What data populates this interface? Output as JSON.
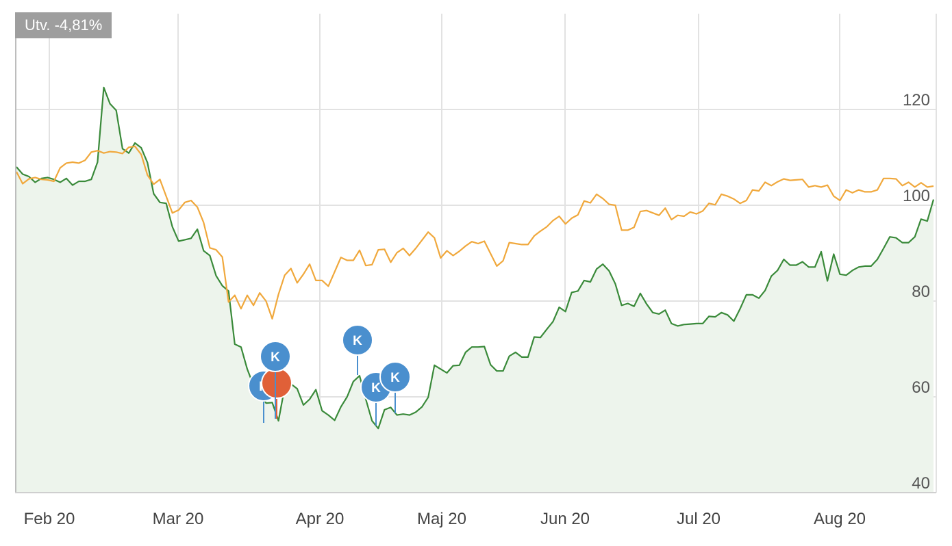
{
  "header": {
    "change_label": "Utv. -4,81%"
  },
  "colors": {
    "stock_line": "#3a8a3a",
    "stock_fill": "#edf4ec",
    "index_line": "#f0a83c",
    "grid": "#e2e2e2",
    "marker_blue": "#4a8fce",
    "marker_orange": "#e06038"
  },
  "chart_data": {
    "type": "line",
    "ylim": [
      40,
      140
    ],
    "yticks": [
      "40",
      "60",
      "80",
      "100",
      "120"
    ],
    "xticks": [
      "Feb 20",
      "Mar 20",
      "Apr 20",
      "Maj 20",
      "Jun 20",
      "Jul 20",
      "Aug 20"
    ],
    "grid": true,
    "series": [
      {
        "key": "stock",
        "values": [
          108,
          106.5,
          106,
          104.8,
          105.6,
          105.8,
          105.4,
          104.8,
          105.6,
          104.2,
          105,
          105,
          105.4,
          109,
          124.6,
          121.2,
          119.8,
          111.8,
          110.9,
          113,
          112,
          108.9,
          102.4,
          100.6,
          100.4,
          95.5,
          92.5,
          92.8,
          93.1,
          95,
          90.5,
          89.5,
          85.3,
          83.2,
          82.1,
          71,
          70.4,
          65.8,
          62.4,
          61,
          58.7,
          58.8,
          55,
          62,
          62.7,
          61.7,
          58.3,
          59.5,
          61.5,
          57.1,
          56.2,
          55.1,
          57.9,
          60,
          63.2,
          64.4,
          59.5,
          55,
          53.4,
          57.3,
          57.8,
          56.2,
          56.4,
          56.2,
          56.8,
          57.9,
          59.9,
          66.6,
          65.8,
          65,
          66.5,
          66.6,
          69.3,
          70.4,
          70.4,
          70.5,
          66.7,
          65.4,
          65.4,
          68.5,
          69.3,
          68.3,
          68.3,
          72.5,
          72.4,
          74.1,
          75.7,
          78.7,
          77.8,
          81.8,
          82.1,
          84.3,
          84,
          86.7,
          87.7,
          86.3,
          83.6,
          79.1,
          79.5,
          78.9,
          81.6,
          79.4,
          77.6,
          77.3,
          78.1,
          75.3,
          74.8,
          75.1,
          75.2,
          75.3,
          75.3,
          76.8,
          76.7,
          77.6,
          77.1,
          75.8,
          78.4,
          81.3,
          81.3,
          80.6,
          82.2,
          85.2,
          86.4,
          88.7,
          87.5,
          87.5,
          88.2,
          87.1,
          87.1,
          90.3,
          84.2,
          89.8,
          85.6,
          85.4,
          86.4,
          87.1,
          87.3,
          87.3,
          88.7,
          91,
          93.4,
          93.2,
          92.2,
          92.2,
          93.4,
          97.1,
          96.7,
          101.2
        ]
      },
      {
        "key": "index",
        "values": [
          107,
          104.5,
          105.5,
          105.8,
          105.4,
          105.3,
          105,
          107.8,
          108.8,
          109,
          108.8,
          109.4,
          111.1,
          111.4,
          110.9,
          111.2,
          111.1,
          110.8,
          112.1,
          112.3,
          110.6,
          106.3,
          104.4,
          105.4,
          101.9,
          98.4,
          99,
          100.6,
          101,
          99.6,
          96.4,
          91.1,
          90.7,
          89.2,
          79.8,
          81.2,
          78.4,
          81.2,
          79.1,
          81.7,
          80,
          76.3,
          81.4,
          85.4,
          86.8,
          83.8,
          85.6,
          87.7,
          84.3,
          84.3,
          83.1,
          86.1,
          89.1,
          88.5,
          88.5,
          90.6,
          87.4,
          87.6,
          90.7,
          90.8,
          88.1,
          90.1,
          91,
          89.5,
          91,
          92.7,
          94.4,
          93.2,
          89,
          90.5,
          89.5,
          90.4,
          91.5,
          92.4,
          92,
          92.5,
          89.9,
          87.3,
          88.4,
          92.2,
          92,
          91.8,
          91.8,
          93.6,
          94.6,
          95.5,
          96.8,
          97.7,
          96.1,
          97.3,
          98,
          100.9,
          100.5,
          102.3,
          101.4,
          100.2,
          100,
          94.8,
          94.8,
          95.4,
          98.7,
          98.9,
          98.4,
          97.9,
          99.4,
          97,
          97.9,
          97.7,
          98.6,
          98.2,
          98.8,
          100.4,
          100.1,
          102.3,
          101.9,
          101.3,
          100.4,
          101,
          103.2,
          103,
          104.8,
          104.1,
          104.9,
          105.5,
          105.2,
          105.3,
          105.4,
          103.8,
          104.1,
          103.8,
          104.2,
          101.9,
          101,
          103.2,
          102.6,
          103.2,
          102.8,
          102.8,
          103.2,
          105.6,
          105.6,
          105.5,
          104.1,
          104.8,
          103.8,
          104.7,
          103.8,
          104
        ]
      }
    ],
    "markers": [
      {
        "label": "K",
        "color": "blue",
        "at_index": 40,
        "value": 56
      },
      {
        "label": "",
        "color": "orange",
        "at_index": 42,
        "value": 56
      },
      {
        "label": "K",
        "color": "blue",
        "at_index": 42,
        "value": 57
      },
      {
        "label": "K",
        "color": "blue",
        "at_index": 55,
        "value": 63
      },
      {
        "label": "K",
        "color": "blue",
        "at_index": 58,
        "value": 55
      },
      {
        "label": "K",
        "color": "blue",
        "at_index": 61,
        "value": 57
      }
    ]
  }
}
